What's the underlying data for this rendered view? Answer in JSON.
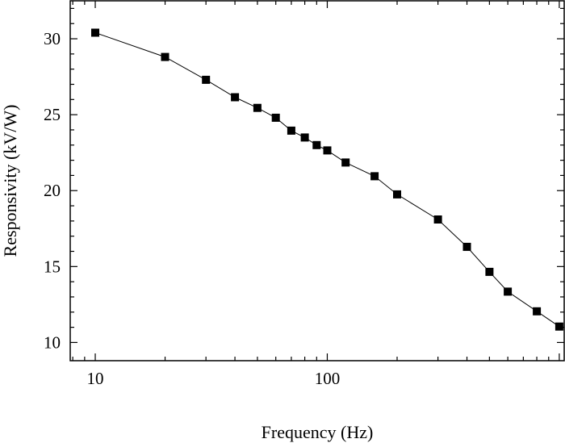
{
  "chart_data": {
    "type": "scatter",
    "title": "",
    "xlabel": "Frequency (Hz)",
    "ylabel": "Responsivity (kV/W)",
    "xscale": "log",
    "xlim": [
      7.8,
      1050
    ],
    "ylim": [
      8.8,
      32.5
    ],
    "x_ticks": [
      10,
      100
    ],
    "x_tick_labels": [
      "10",
      "100"
    ],
    "y_ticks": [
      10,
      15,
      20,
      25,
      30
    ],
    "y_tick_labels": [
      "10",
      "15",
      "20",
      "25",
      "30"
    ],
    "grid": false,
    "legend": "none",
    "marker": "square",
    "line_connected": true,
    "series": [
      {
        "x": [
          10,
          20,
          30,
          40,
          50,
          60,
          70,
          80,
          90,
          100,
          120,
          160,
          200,
          300,
          400,
          500,
          600,
          800,
          1000
        ],
        "y": [
          30.4,
          28.8,
          27.3,
          26.15,
          25.45,
          24.8,
          23.95,
          23.5,
          23.0,
          22.65,
          21.85,
          20.95,
          19.75,
          18.1,
          16.3,
          14.65,
          13.35,
          12.05,
          11.05
        ]
      }
    ]
  },
  "colors": {
    "line": "#000000",
    "marker": "#000000",
    "axis": "#000000",
    "background": "#ffffff"
  }
}
